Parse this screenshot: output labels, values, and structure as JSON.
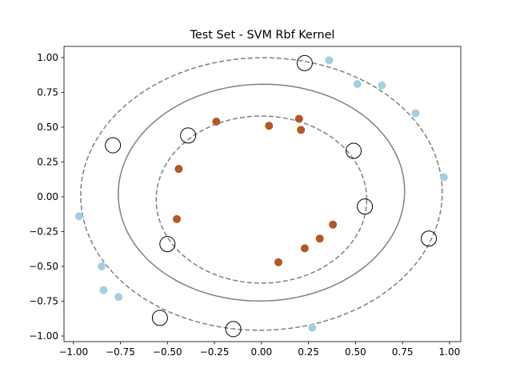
{
  "chart_data": {
    "type": "scatter",
    "title": "Test Set - SVM Rbf Kernel",
    "xlabel": "",
    "ylabel": "",
    "xlim": [
      -1.05,
      1.06
    ],
    "ylim": [
      -1.04,
      1.08
    ],
    "xticks": [
      -1.0,
      -0.75,
      -0.5,
      -0.25,
      0.0,
      0.25,
      0.5,
      0.75,
      1.0
    ],
    "xtick_labels": [
      "−1.00",
      "−0.75",
      "−0.50",
      "−0.25",
      "0.00",
      "0.25",
      "0.50",
      "0.75",
      "1.00"
    ],
    "yticks": [
      -1.0,
      -0.75,
      -0.5,
      -0.25,
      0.0,
      0.25,
      0.5,
      0.75,
      1.0
    ],
    "ytick_labels": [
      "−1.00",
      "−0.75",
      "−0.50",
      "−0.25",
      "0.00",
      "0.25",
      "0.50",
      "0.75",
      "1.00"
    ],
    "grid": false,
    "colors": {
      "outer_class": "#a6cee3",
      "inner_class": "#b15928",
      "boundary": "#808080",
      "support_vector_edge": "#000000"
    },
    "series": [
      {
        "class": "outer",
        "points": [
          [
            0.36,
            0.98
          ],
          [
            0.51,
            0.81
          ],
          [
            0.64,
            0.8
          ],
          [
            0.82,
            0.6
          ],
          [
            0.97,
            0.14
          ],
          [
            -0.97,
            -0.14
          ],
          [
            -0.85,
            -0.5
          ],
          [
            -0.84,
            -0.67
          ],
          [
            -0.76,
            -0.72
          ],
          [
            0.27,
            -0.94
          ]
        ]
      },
      {
        "class": "inner",
        "points": [
          [
            -0.24,
            0.54
          ],
          [
            0.04,
            0.51
          ],
          [
            0.2,
            0.56
          ],
          [
            0.21,
            0.48
          ],
          [
            -0.44,
            0.2
          ],
          [
            -0.45,
            -0.16
          ],
          [
            0.38,
            -0.2
          ],
          [
            0.31,
            -0.3
          ],
          [
            0.23,
            -0.37
          ],
          [
            0.09,
            -0.47
          ]
        ]
      }
    ],
    "support_vectors": [
      [
        0.23,
        0.96
      ],
      [
        -0.39,
        0.44
      ],
      [
        -0.79,
        0.37
      ],
      [
        0.49,
        0.33
      ],
      [
        0.55,
        -0.07
      ],
      [
        -0.5,
        -0.34
      ],
      [
        0.89,
        -0.3
      ],
      [
        -0.54,
        -0.87
      ],
      [
        -0.15,
        -0.95
      ]
    ],
    "contours": [
      {
        "level": 1,
        "style": "dashed",
        "cx": 0.0,
        "cy": -0.02,
        "rx": 0.56,
        "ry": 0.6,
        "rot": 0.0
      },
      {
        "level": 0,
        "style": "solid",
        "cx": 0.0,
        "cy": 0.03,
        "rx": 0.76,
        "ry": 0.78,
        "rot": -15
      },
      {
        "level": -1,
        "style": "dashed",
        "cx": 0.0,
        "cy": 0.02,
        "rx": 0.96,
        "ry": 0.98,
        "rot": -15
      }
    ]
  }
}
